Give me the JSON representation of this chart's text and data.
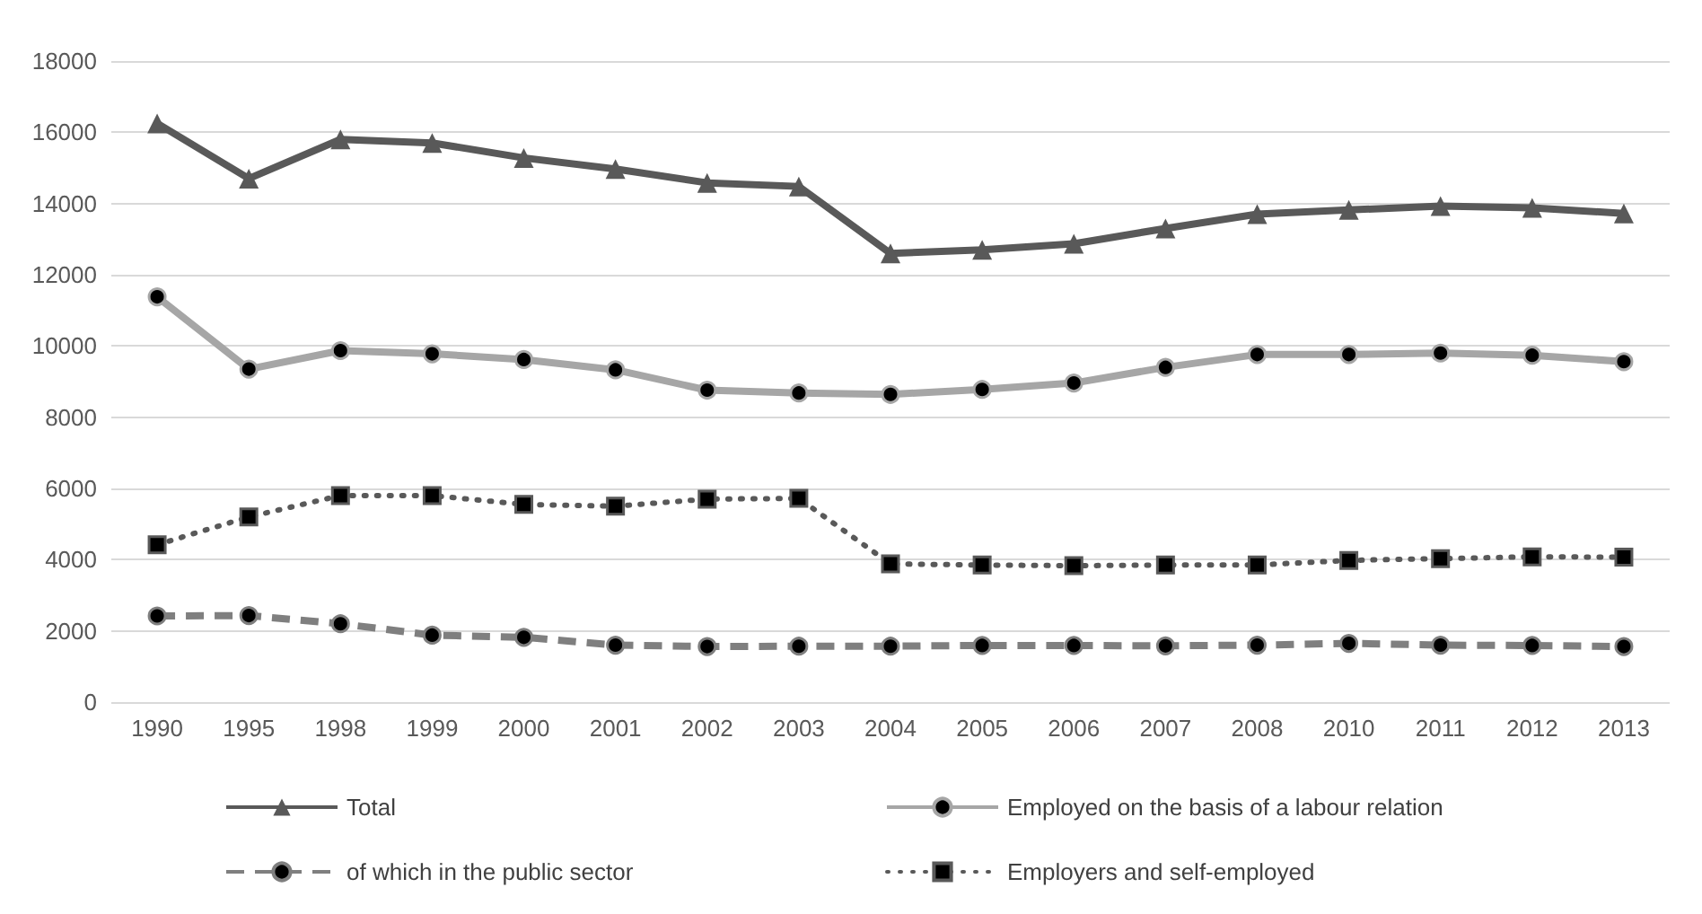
{
  "chart_data": {
    "type": "line",
    "categories": [
      "1990",
      "1995",
      "1998",
      "1999",
      "2000",
      "2001",
      "2002",
      "2003",
      "2004",
      "2005",
      "2006",
      "2007",
      "2008",
      "2010",
      "2011",
      "2012",
      "2013"
    ],
    "series": [
      {
        "name": "Total",
        "color": "#595959",
        "marker": "triangle",
        "line_style": "solid",
        "values": [
          16250,
          14700,
          15800,
          15700,
          15280,
          14970,
          14580,
          14480,
          12600,
          12700,
          12870,
          13300,
          13700,
          13820,
          13930,
          13880,
          13720
        ]
      },
      {
        "name": "Employed on the basis of a labour relation",
        "color": "#a6a6a6",
        "marker": "circle",
        "line_style": "solid",
        "values": [
          11380,
          9350,
          9870,
          9780,
          9620,
          9330,
          8760,
          8680,
          8640,
          8780,
          8960,
          9400,
          9760,
          9760,
          9800,
          9740,
          9560
        ]
      },
      {
        "name": "of which in the public sector",
        "color": "#7f7f7f",
        "marker": "circle",
        "line_style": "dashed",
        "values": [
          2420,
          2430,
          2200,
          1880,
          1820,
          1600,
          1560,
          1570,
          1570,
          1590,
          1590,
          1580,
          1600,
          1650,
          1600,
          1590,
          1560
        ]
      },
      {
        "name": "Employers and self-employed",
        "color": "#595959",
        "marker": "square",
        "line_style": "dotted",
        "values": [
          4420,
          5200,
          5800,
          5800,
          5550,
          5500,
          5700,
          5720,
          3880,
          3850,
          3830,
          3850,
          3850,
          3980,
          4030,
          4080,
          4070
        ]
      }
    ],
    "ylim": [
      0,
      18000
    ],
    "yticks": [
      0,
      2000,
      4000,
      6000,
      8000,
      10000,
      12000,
      14000,
      16000,
      18000
    ],
    "grid": "y",
    "legend": "bottom"
  }
}
